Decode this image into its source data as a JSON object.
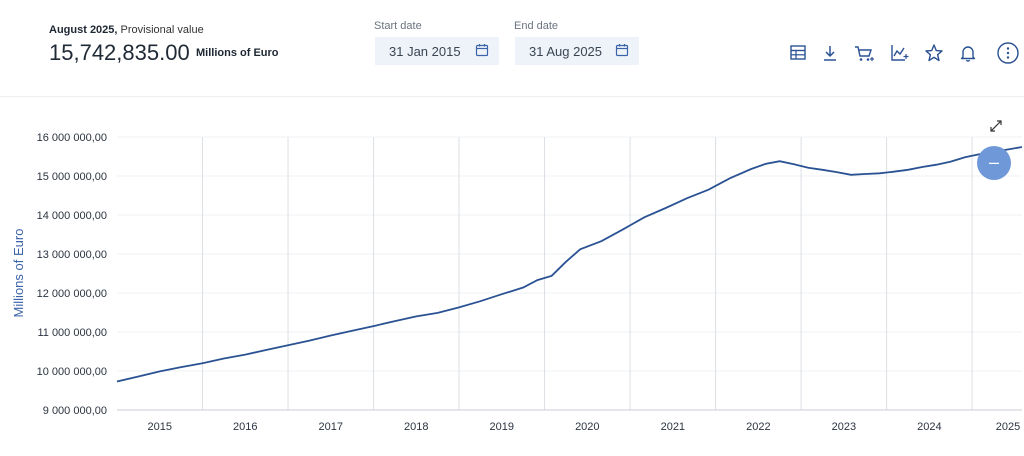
{
  "header": {
    "period_bold": "August 2025,",
    "period_note": " Provisional value",
    "value": "15,742,835.00",
    "unit": "Millions of Euro",
    "start_label": "Start date",
    "start_value": "31 Jan 2015",
    "end_label": "End date",
    "end_value": "31 Aug 2025"
  },
  "toolbar": {
    "icons": [
      "table-icon",
      "download-icon",
      "cart-icon",
      "chart-add-icon",
      "star-icon",
      "bell-icon",
      "more-icon"
    ]
  },
  "controls": {
    "zoom_label": "–"
  },
  "colors": {
    "line": "#2a5293",
    "accent": "#6e98d8"
  },
  "chart_data": {
    "type": "line",
    "ylabel": "Millions of Euro",
    "xlabel": "",
    "ylim": [
      9000000,
      16000000
    ],
    "yticks": [
      "9 000 000,00",
      "10 000 000,00",
      "11 000 000,00",
      "12 000 000,00",
      "13 000 000,00",
      "14 000 000,00",
      "15 000 000,00",
      "16 000 000,00"
    ],
    "yticks_values": [
      9000000,
      10000000,
      11000000,
      12000000,
      13000000,
      14000000,
      15000000,
      16000000
    ],
    "xlim": [
      "2015-01",
      "2025-08"
    ],
    "xticks": [
      "2015",
      "2016",
      "2017",
      "2018",
      "2019",
      "2020",
      "2021",
      "2022",
      "2023",
      "2024",
      "2025"
    ],
    "grid": true,
    "series": [
      {
        "x": [
          "2015-01",
          "2015-04",
          "2015-07",
          "2015-10",
          "2016-01",
          "2016-04",
          "2016-07",
          "2016-10",
          "2017-01",
          "2017-04",
          "2017-07",
          "2017-10",
          "2018-01",
          "2018-04",
          "2018-07",
          "2018-10",
          "2019-01",
          "2019-04",
          "2019-07",
          "2019-10",
          "2019-12",
          "2020-02",
          "2020-04",
          "2020-06",
          "2020-09",
          "2020-12",
          "2021-03",
          "2021-06",
          "2021-09",
          "2021-12",
          "2022-03",
          "2022-06",
          "2022-08",
          "2022-10",
          "2022-12",
          "2023-02",
          "2023-04",
          "2023-06",
          "2023-08",
          "2023-10",
          "2023-12",
          "2024-02",
          "2024-04",
          "2024-06",
          "2024-08",
          "2024-10",
          "2024-12",
          "2025-02",
          "2025-04",
          "2025-06",
          "2025-08"
        ],
        "values": [
          9730000,
          9860000,
          9990000,
          10100000,
          10200000,
          10320000,
          10420000,
          10540000,
          10660000,
          10780000,
          10910000,
          11030000,
          11150000,
          11280000,
          11400000,
          11490000,
          11630000,
          11790000,
          11970000,
          12140000,
          12330000,
          12440000,
          12800000,
          13120000,
          13330000,
          13630000,
          13940000,
          14180000,
          14430000,
          14650000,
          14940000,
          15180000,
          15310000,
          15380000,
          15300000,
          15210000,
          15160000,
          15100000,
          15030000,
          15050000,
          15070000,
          15110000,
          15160000,
          15230000,
          15290000,
          15370000,
          15480000,
          15560000,
          15620000,
          15680000,
          15742835
        ]
      }
    ]
  }
}
